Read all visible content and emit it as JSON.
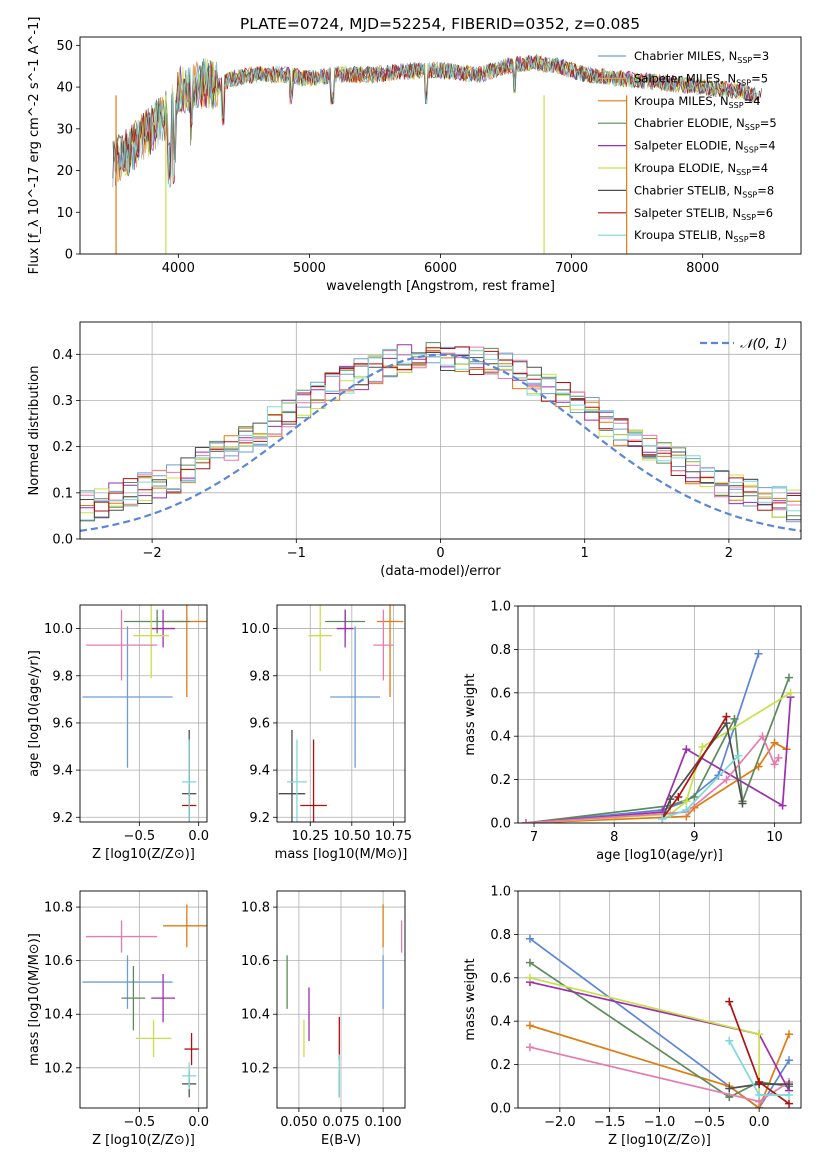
{
  "figure_title": "PLATE=0724, MJD=52254, FIBERID=0352, z=0.085",
  "colors": {
    "Chabrier MILES": "#1f77b4",
    "Salpeter MILES": "#6c2aa0",
    "Kroupa MILES": "#e07b10",
    "Chabrier ELODIE": "#4c7a4c",
    "Salpeter ELODIE": "#9b2fae",
    "Kroupa ELODIE": "#c8e04a",
    "Chabrier STELIB": "#4d4d4d",
    "Salpeter STELIB": "#b01010",
    "Kroupa STELIB": "#7fd8d8",
    "normal": "#5b86d8"
  },
  "chart_data": [
    {
      "id": "spectrum",
      "type": "line",
      "title": "PLATE=0724, MJD=52254, FIBERID=0352, z=0.085",
      "xlabel": "wavelength [Angstrom, rest frame]",
      "ylabel": "Flux [f_λ 10^-17 erg cm^-2 s^-1 A^-1]",
      "xlim": [
        3250,
        8750
      ],
      "ylim": [
        0,
        52
      ],
      "xticks": [
        "4000",
        "5000",
        "6000",
        "7000",
        "8000"
      ],
      "yticks": [
        "0",
        "10",
        "20",
        "30",
        "40",
        "50"
      ],
      "legend_position": "top-right",
      "legend": [
        {
          "label": "Chabrier MILES",
          "nssp": "3",
          "color": "#6e9dd0"
        },
        {
          "label": "Salpeter MILES",
          "nssp": "5",
          "color": "#e8944a"
        },
        {
          "label": "Kroupa MILES",
          "nssp": "4",
          "color": "#e07b10"
        },
        {
          "label": "Chabrier ELODIE",
          "nssp": "5",
          "color": "#5c8a5c"
        },
        {
          "label": "Salpeter ELODIE",
          "nssp": "4",
          "color": "#9b2fae"
        },
        {
          "label": "Kroupa ELODIE",
          "nssp": "4",
          "color": "#c8e04a"
        },
        {
          "label": "Chabrier STELIB",
          "nssp": "8",
          "color": "#4d4d4d"
        },
        {
          "label": "Salpeter STELIB",
          "nssp": "6",
          "color": "#b01010"
        },
        {
          "label": "Kroupa STELIB",
          "nssp": "8",
          "color": "#7fd8d8"
        }
      ],
      "continuum": {
        "x": [
          3500,
          3600,
          3700,
          3800,
          3900,
          4000,
          4100,
          4200,
          4300,
          4400,
          4600,
          4800,
          5000,
          5200,
          5500,
          5800,
          6000,
          6300,
          6500,
          6700,
          6900,
          7100,
          7400,
          7700,
          8000,
          8300,
          8400
        ],
        "y": [
          22,
          24,
          27,
          30,
          33,
          39,
          40,
          41,
          40,
          42,
          43,
          43,
          42,
          43,
          43,
          44,
          44,
          43,
          45,
          46,
          45,
          43,
          42,
          41,
          40,
          39,
          38
        ]
      }
    },
    {
      "id": "residuals",
      "type": "bar",
      "xlabel": "(data-model)/error",
      "ylabel": "Normed distribution",
      "xlim": [
        -2.5,
        2.5
      ],
      "ylim": [
        0,
        0.47
      ],
      "xticks": [
        "−2",
        "−1",
        "0",
        "1",
        "2"
      ],
      "yticks": [
        "0.0",
        "0.1",
        "0.2",
        "0.3",
        "0.4"
      ],
      "legend_position": "top-right",
      "legend": [
        {
          "label": "𝒩(0, 1)",
          "color": "#5b86d8"
        }
      ]
    },
    {
      "id": "age_vs_Z",
      "type": "scatter",
      "xlabel": "Z [log10(Z/Z⊙)]",
      "ylabel": "age [log10(age/yr)]",
      "xlim": [
        -1.0,
        0.07
      ],
      "ylim": [
        9.18,
        10.1
      ],
      "xticks": [
        "−0.5",
        "0.0"
      ],
      "yticks": [
        "9.2",
        "9.4",
        "9.6",
        "9.8",
        "10.0"
      ],
      "points": [
        {
          "x": -0.6,
          "xerr": 0.38,
          "y": 9.71,
          "yerr": 0.3,
          "color": "#6e9dd0"
        },
        {
          "x": -0.1,
          "xerr": 0.2,
          "y": 10.03,
          "yerr": 0.32,
          "color": "#e07b10"
        },
        {
          "x": -0.35,
          "xerr": 0.28,
          "y": 10.03,
          "yerr": 0.05,
          "color": "#5c8a5c"
        },
        {
          "x": -0.3,
          "xerr": 0.1,
          "y": 10.0,
          "yerr": 0.08,
          "color": "#9b2fae"
        },
        {
          "x": -0.4,
          "xerr": 0.15,
          "y": 9.97,
          "yerr": 0.18,
          "color": "#c8e04a"
        },
        {
          "x": -0.65,
          "xerr": 0.3,
          "y": 9.93,
          "yerr": 0.15,
          "color": "#e67bb0"
        },
        {
          "x": -0.08,
          "xerr": 0.06,
          "y": 9.3,
          "yerr": 0.27,
          "color": "#4d4d4d"
        },
        {
          "x": -0.08,
          "xerr": 0.06,
          "y": 9.25,
          "yerr": 0.28,
          "color": "#b01010"
        },
        {
          "x": -0.08,
          "xerr": 0.06,
          "y": 9.35,
          "yerr": 0.18,
          "color": "#7fd8d8"
        }
      ]
    },
    {
      "id": "age_vs_mass",
      "type": "scatter",
      "xlabel": "mass [log10(M/M⊙)]",
      "ylabel": "",
      "xlim": [
        10.05,
        10.82
      ],
      "ylim": [
        9.18,
        10.1
      ],
      "xticks": [
        "10.25",
        "10.50",
        "10.75"
      ],
      "yticks": [
        "9.2",
        "9.4",
        "9.6",
        "9.8",
        "10.0"
      ],
      "points": [
        {
          "x": 10.52,
          "xerr": 0.15,
          "y": 9.71,
          "yerr": 0.3,
          "color": "#6e9dd0"
        },
        {
          "x": 10.73,
          "xerr": 0.08,
          "y": 10.03,
          "yerr": 0.32,
          "color": "#e07b10"
        },
        {
          "x": 10.46,
          "xerr": 0.12,
          "y": 10.03,
          "yerr": 0.05,
          "color": "#5c8a5c"
        },
        {
          "x": 10.46,
          "xerr": 0.05,
          "y": 10.0,
          "yerr": 0.08,
          "color": "#9b2fae"
        },
        {
          "x": 10.31,
          "xerr": 0.07,
          "y": 9.97,
          "yerr": 0.15,
          "color": "#c8e04a"
        },
        {
          "x": 10.69,
          "xerr": 0.06,
          "y": 9.93,
          "yerr": 0.15,
          "color": "#e67bb0"
        },
        {
          "x": 10.14,
          "xerr": 0.08,
          "y": 9.3,
          "yerr": 0.27,
          "color": "#4d4d4d"
        },
        {
          "x": 10.27,
          "xerr": 0.08,
          "y": 9.25,
          "yerr": 0.28,
          "color": "#b01010"
        },
        {
          "x": 10.17,
          "xerr": 0.06,
          "y": 9.35,
          "yerr": 0.18,
          "color": "#7fd8d8"
        }
      ]
    },
    {
      "id": "weight_vs_age",
      "type": "line",
      "xlabel": "age [log10(age/yr)]",
      "ylabel": "mass weight",
      "xlim": [
        6.8,
        10.33
      ],
      "ylim": [
        0,
        1.0
      ],
      "xticks": [
        "7",
        "8",
        "9",
        "10"
      ],
      "yticks": [
        "0.0",
        "0.2",
        "0.4",
        "0.6",
        "0.8",
        "1.0"
      ],
      "series": [
        {
          "color": "#5b86d8",
          "x": [
            6.9,
            8.6,
            8.9,
            9.3,
            9.8
          ],
          "y": [
            0.0,
            0.06,
            0.1,
            0.22,
            0.78
          ]
        },
        {
          "color": "#e07b10",
          "x": [
            6.9,
            8.9,
            9.0,
            9.8,
            10.0,
            10.15
          ],
          "y": [
            0.0,
            0.03,
            0.07,
            0.26,
            0.37,
            0.34
          ]
        },
        {
          "color": "#5c8a5c",
          "x": [
            6.9,
            8.7,
            9.0,
            9.5,
            9.6,
            10.18
          ],
          "y": [
            0.0,
            0.08,
            0.12,
            0.48,
            0.1,
            0.67
          ]
        },
        {
          "color": "#9b2fae",
          "x": [
            6.9,
            8.6,
            8.9,
            10.1,
            10.2
          ],
          "y": [
            0.0,
            0.05,
            0.34,
            0.08,
            0.58
          ]
        },
        {
          "color": "#c8e04a",
          "x": [
            6.9,
            8.7,
            8.9,
            9.1,
            10.2
          ],
          "y": [
            0.0,
            0.04,
            0.1,
            0.35,
            0.6
          ]
        },
        {
          "color": "#e67bb0",
          "x": [
            6.9,
            8.9,
            9.4,
            9.85,
            10.0,
            10.05
          ],
          "y": [
            0.0,
            0.05,
            0.2,
            0.4,
            0.27,
            0.3
          ]
        },
        {
          "color": "#4d4d4d",
          "x": [
            8.6,
            8.7,
            9.4,
            9.6
          ],
          "y": [
            0.02,
            0.11,
            0.46,
            0.09
          ]
        },
        {
          "color": "#b01010",
          "x": [
            8.6,
            8.8,
            9.4
          ],
          "y": [
            0.02,
            0.12,
            0.49
          ]
        },
        {
          "color": "#7fd8d8",
          "x": [
            8.6,
            8.9,
            9.55
          ],
          "y": [
            0.02,
            0.06,
            0.31
          ]
        }
      ]
    },
    {
      "id": "mass_vs_Z",
      "type": "scatter",
      "xlabel": "Z [log10(Z/Z⊙)]",
      "ylabel": "mass [log10(M/M⊙)]",
      "xlim": [
        -1.0,
        0.07
      ],
      "ylim": [
        10.05,
        10.86
      ],
      "xticks": [
        "−0.5",
        "0.0"
      ],
      "yticks": [
        "10.2",
        "10.4",
        "10.6",
        "10.8"
      ],
      "points": [
        {
          "x": -0.6,
          "xerr": 0.38,
          "y": 10.52,
          "yerr": 0.1,
          "color": "#6e9dd0"
        },
        {
          "x": -0.1,
          "xerr": 0.2,
          "y": 10.73,
          "yerr": 0.08,
          "color": "#e07b10"
        },
        {
          "x": -0.55,
          "xerr": 0.1,
          "y": 10.46,
          "yerr": 0.12,
          "color": "#5c8a5c"
        },
        {
          "x": -0.3,
          "xerr": 0.1,
          "y": 10.46,
          "yerr": 0.09,
          "color": "#9b2fae"
        },
        {
          "x": -0.38,
          "xerr": 0.15,
          "y": 10.31,
          "yerr": 0.07,
          "color": "#c8e04a"
        },
        {
          "x": -0.65,
          "xerr": 0.3,
          "y": 10.69,
          "yerr": 0.06,
          "color": "#e67bb0"
        },
        {
          "x": -0.08,
          "xerr": 0.06,
          "y": 10.14,
          "yerr": 0.05,
          "color": "#4d4d4d"
        },
        {
          "x": -0.06,
          "xerr": 0.06,
          "y": 10.27,
          "yerr": 0.06,
          "color": "#b01010"
        },
        {
          "x": -0.08,
          "xerr": 0.06,
          "y": 10.17,
          "yerr": 0.05,
          "color": "#7fd8d8"
        }
      ]
    },
    {
      "id": "mass_vs_ebv",
      "type": "scatter",
      "xlabel": "E(B-V)",
      "ylabel": "",
      "xlim": [
        0.037,
        0.113
      ],
      "ylim": [
        10.05,
        10.86
      ],
      "xticks": [
        "0.050",
        "0.075",
        "0.100"
      ],
      "yticks": [
        "10.2",
        "10.4",
        "10.6",
        "10.8"
      ],
      "points": [
        {
          "x": 0.1,
          "y": 10.52,
          "yerr": 0.1,
          "color": "#6e9dd0"
        },
        {
          "x": 0.1,
          "y": 10.73,
          "yerr": 0.08,
          "color": "#e07b10"
        },
        {
          "x": 0.043,
          "y": 10.52,
          "yerr": 0.1,
          "color": "#5c8a5c"
        },
        {
          "x": 0.056,
          "y": 10.4,
          "yerr": 0.1,
          "color": "#9b2fae"
        },
        {
          "x": 0.053,
          "y": 10.31,
          "yerr": 0.07,
          "color": "#c8e04a"
        },
        {
          "x": 0.111,
          "y": 10.69,
          "yerr": 0.06,
          "color": "#e67bb0"
        },
        {
          "x": 0.074,
          "y": 10.14,
          "yerr": 0.05,
          "color": "#4d4d4d"
        },
        {
          "x": 0.074,
          "y": 10.31,
          "yerr": 0.08,
          "color": "#b01010"
        },
        {
          "x": 0.074,
          "y": 10.17,
          "yerr": 0.08,
          "color": "#7fd8d8"
        }
      ]
    },
    {
      "id": "weight_vs_Z",
      "type": "line",
      "xlabel": "Z [log10(Z/Z⊙)]",
      "ylabel": "mass weight",
      "xlim": [
        -2.42,
        0.42
      ],
      "ylim": [
        0,
        1.0
      ],
      "xticks": [
        "−2.0",
        "−1.5",
        "−1.0",
        "−0.5",
        "0.0"
      ],
      "yticks": [
        "0.0",
        "0.2",
        "0.4",
        "0.6",
        "0.8",
        "1.0"
      ],
      "series": [
        {
          "color": "#5b86d8",
          "x": [
            -2.3,
            -0.3,
            0.0,
            0.3
          ],
          "y": [
            0.78,
            0.1,
            0.0,
            0.22
          ]
        },
        {
          "color": "#e07b10",
          "x": [
            -2.3,
            -0.3,
            0.0,
            0.3
          ],
          "y": [
            0.38,
            0.1,
            0.0,
            0.34
          ]
        },
        {
          "color": "#5c8a5c",
          "x": [
            -2.3,
            -0.3,
            0.0,
            0.3
          ],
          "y": [
            0.67,
            0.05,
            0.12,
            0.1
          ]
        },
        {
          "color": "#9b2fae",
          "x": [
            -2.3,
            0.0,
            0.3
          ],
          "y": [
            0.58,
            0.34,
            0.08
          ]
        },
        {
          "color": "#c8e04a",
          "x": [
            -2.3,
            0.0,
            0.0
          ],
          "y": [
            0.6,
            0.34,
            0.03
          ]
        },
        {
          "color": "#e67bb0",
          "x": [
            -2.3,
            0.0,
            0.3
          ],
          "y": [
            0.28,
            0.03,
            0.12
          ]
        },
        {
          "color": "#4d4d4d",
          "x": [
            -0.3,
            0.0,
            0.3
          ],
          "y": [
            0.09,
            0.11,
            0.11
          ]
        },
        {
          "color": "#b01010",
          "x": [
            -0.3,
            0.0,
            0.3
          ],
          "y": [
            0.49,
            0.12,
            0.02
          ]
        },
        {
          "color": "#7fd8d8",
          "x": [
            -0.3,
            0.0,
            0.3
          ],
          "y": [
            0.31,
            0.06,
            0.06
          ]
        }
      ]
    }
  ]
}
